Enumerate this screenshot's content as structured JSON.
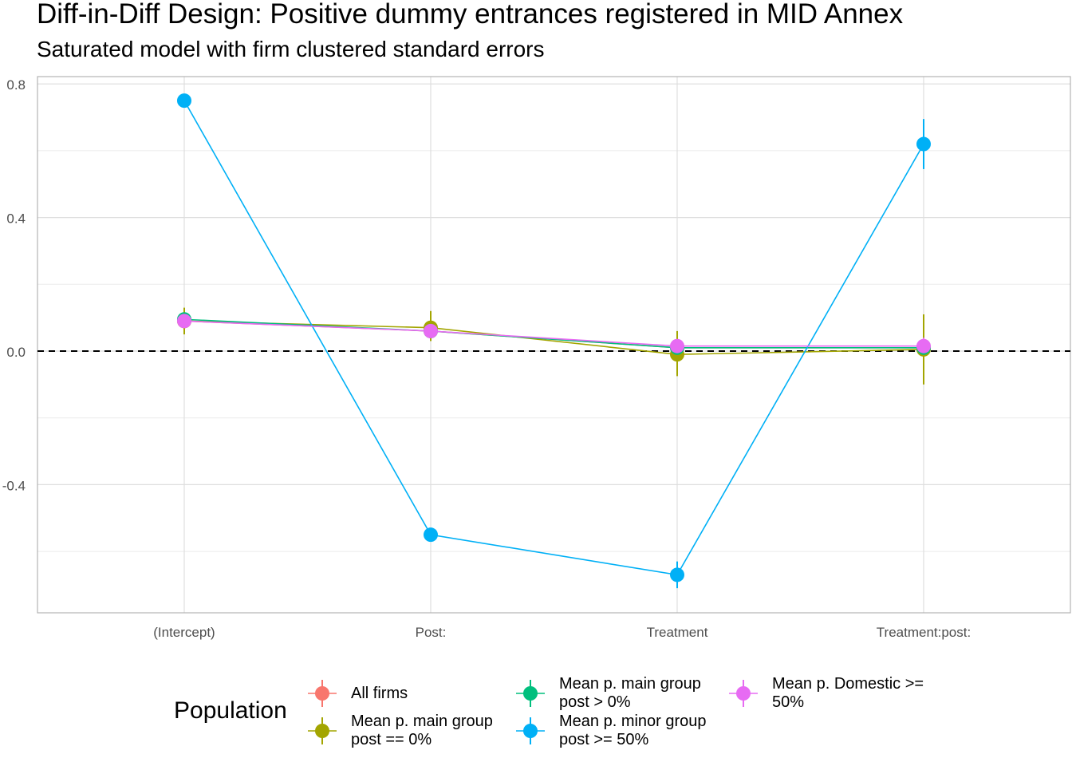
{
  "chart_data": {
    "type": "line",
    "title": "Diff-in-Diff Design: Positive dummy entrances registered in MID Annex",
    "subtitle": "Saturated model with firm clustered standard errors",
    "xlabel": "",
    "ylabel": "",
    "categories": [
      "(Intercept)",
      "Post:",
      "Treatment",
      "Treatment:post:"
    ],
    "ylim": [
      -0.78,
      0.82
    ],
    "yticks": [
      -0.4,
      0.0,
      0.4,
      0.8
    ],
    "ytick_labels": [
      "-0.4",
      "0.0",
      "0.4",
      "0.8"
    ],
    "reference_line": 0.0,
    "legend_title": "Population",
    "legend_position": "bottom",
    "grid": true,
    "series": [
      {
        "name": "All firms",
        "color": "#F8766D",
        "values": [
          0.09,
          0.06,
          0.01,
          0.01
        ],
        "lower": [
          0.07,
          0.045,
          0.0,
          -0.005
        ],
        "upper": [
          0.11,
          0.075,
          0.02,
          0.025
        ]
      },
      {
        "name": "Mean p. main group\npost == 0%",
        "color": "#A3A500",
        "values": [
          0.09,
          0.07,
          -0.01,
          0.005
        ],
        "lower": [
          0.05,
          0.03,
          -0.075,
          -0.1
        ],
        "upper": [
          0.13,
          0.12,
          0.06,
          0.11
        ]
      },
      {
        "name": "Mean p. main group\npost > 0%",
        "color": "#00BF7D",
        "values": [
          0.095,
          0.06,
          0.01,
          0.01
        ],
        "lower": [
          0.075,
          0.045,
          0.0,
          -0.005
        ],
        "upper": [
          0.115,
          0.075,
          0.02,
          0.025
        ]
      },
      {
        "name": "Mean p. minor group\npost >= 50%",
        "color": "#00B0F6",
        "values": [
          0.75,
          -0.55,
          -0.67,
          0.62
        ],
        "lower": [
          0.735,
          -0.565,
          -0.71,
          0.545
        ],
        "upper": [
          0.765,
          -0.535,
          -0.63,
          0.695
        ]
      },
      {
        "name": "Mean p. Domestic >=\n50%",
        "color": "#E76BF3",
        "values": [
          0.09,
          0.06,
          0.015,
          0.015
        ],
        "lower": [
          0.075,
          0.045,
          0.0,
          -0.01
        ],
        "upper": [
          0.105,
          0.075,
          0.03,
          0.04
        ]
      }
    ]
  }
}
